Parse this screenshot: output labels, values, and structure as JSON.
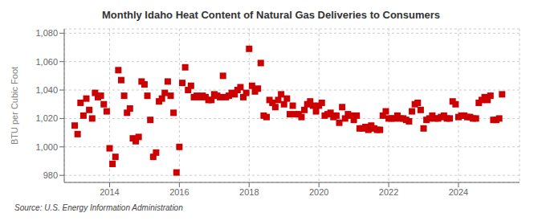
{
  "chart_data": {
    "type": "scatter",
    "title": "Monthly Idaho Heat Content of Natural Gas Deliveries to Consumers",
    "ylabel": "BTU per Cubic Foot",
    "annotations": [
      "Source: U.S. Energy Information Administration"
    ],
    "color": "#cc0000",
    "marker": "square",
    "grid": true,
    "xlim": [
      2012.7,
      2025.75
    ],
    "xticks": [
      2014,
      2016,
      2018,
      2020,
      2022,
      2024
    ],
    "ylim": [
      975,
      1083
    ],
    "yticks": [
      980,
      {
        "value": 1000,
        "label": "1,000"
      },
      {
        "value": 1020,
        "label": "1,020"
      },
      {
        "value": 1040,
        "label": "1,040"
      },
      {
        "value": 1060,
        "label": "1,060"
      },
      {
        "value": 1080,
        "label": "1,080"
      }
    ],
    "x": [
      2013.0,
      2013.083,
      2013.167,
      2013.25,
      2013.333,
      2013.417,
      2013.5,
      2013.583,
      2013.667,
      2013.75,
      2013.833,
      2013.917,
      2014.0,
      2014.083,
      2014.167,
      2014.25,
      2014.333,
      2014.417,
      2014.5,
      2014.583,
      2014.667,
      2014.75,
      2014.833,
      2014.917,
      2015.0,
      2015.083,
      2015.167,
      2015.25,
      2015.333,
      2015.417,
      2015.5,
      2015.583,
      2015.667,
      2015.75,
      2015.833,
      2015.917,
      2016.0,
      2016.083,
      2016.167,
      2016.25,
      2016.333,
      2016.417,
      2016.5,
      2016.583,
      2016.667,
      2016.75,
      2016.833,
      2016.917,
      2017.0,
      2017.083,
      2017.167,
      2017.25,
      2017.333,
      2017.417,
      2017.5,
      2017.583,
      2017.667,
      2017.75,
      2017.833,
      2017.917,
      2018.0,
      2018.083,
      2018.167,
      2018.25,
      2018.333,
      2018.417,
      2018.5,
      2018.583,
      2018.667,
      2018.75,
      2018.833,
      2018.917,
      2019.0,
      2019.083,
      2019.167,
      2019.25,
      2019.333,
      2019.417,
      2019.5,
      2019.583,
      2019.667,
      2019.75,
      2019.833,
      2019.917,
      2020.0,
      2020.083,
      2020.167,
      2020.25,
      2020.333,
      2020.417,
      2020.5,
      2020.583,
      2020.667,
      2020.75,
      2020.833,
      2020.917,
      2021.0,
      2021.083,
      2021.167,
      2021.25,
      2021.333,
      2021.417,
      2021.5,
      2021.583,
      2021.667,
      2021.75,
      2021.833,
      2021.917,
      2022.0,
      2022.083,
      2022.167,
      2022.25,
      2022.333,
      2022.417,
      2022.5,
      2022.583,
      2022.667,
      2022.75,
      2022.833,
      2022.917,
      2023.0,
      2023.083,
      2023.167,
      2023.25,
      2023.333,
      2023.417,
      2023.5,
      2023.583,
      2023.667,
      2023.75,
      2023.833,
      2023.917,
      2024.0,
      2024.083,
      2024.167,
      2024.25,
      2024.333,
      2024.417,
      2024.5,
      2024.583,
      2024.667,
      2024.75,
      2024.833,
      2024.917,
      2025.0,
      2025.083,
      2025.167,
      2025.25
    ],
    "values": [
      1015,
      1009,
      1031,
      1022,
      1034,
      1026,
      1020,
      1038,
      1035,
      1036,
      1030,
      1025,
      999,
      988,
      993,
      1054,
      1047,
      1036,
      1024,
      1027,
      1006,
      1004,
      1007,
      1046,
      1044,
      1036,
      1019,
      993,
      996,
      1032,
      1034,
      1038,
      1046,
      1036,
      1024,
      982,
      1000,
      1045,
      1056,
      1040,
      1043,
      1035,
      1036,
      1035,
      1036,
      1035,
      1033,
      1033,
      1037,
      1036,
      1035,
      1050,
      1035,
      1036,
      1038,
      1037,
      1040,
      1042,
      1035,
      1038,
      1069,
      1043,
      1039,
      1041,
      1059,
      1022,
      1021,
      1033,
      1031,
      1028,
      1033,
      1037,
      1030,
      1034,
      1023,
      1029,
      1023,
      1023,
      1021,
      1026,
      1030,
      1032,
      1029,
      1025,
      1029,
      1031,
      1022,
      1023,
      1024,
      1021,
      1022,
      1017,
      1028,
      1020,
      1023,
      1022,
      1019,
      1022,
      1013,
      1013,
      1014,
      1012,
      1015,
      1013,
      1012,
      1012,
      1022,
      1025,
      1020,
      1020,
      1020,
      1022,
      1020,
      1020,
      1019,
      1018,
      1025,
      1030,
      1031,
      1026,
      1013,
      1019,
      1020,
      1022,
      1020,
      1020,
      1021,
      1022,
      1020,
      1020,
      1032,
      1030,
      1021,
      1022,
      1022,
      1021,
      1021,
      1020,
      1020,
      1031,
      1033,
      1035,
      1033,
      1036,
      1019,
      1019,
      1020,
      1037
    ]
  }
}
